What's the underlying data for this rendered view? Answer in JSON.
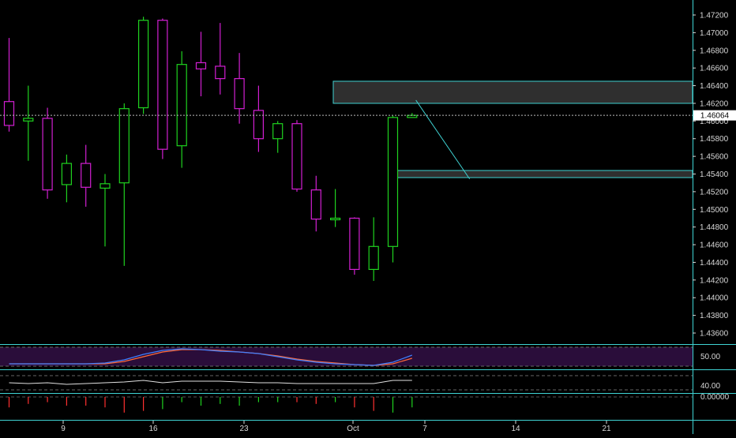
{
  "colors": {
    "background": "#000000",
    "up_candle": "#1fd21f",
    "down_candle": "#d21fd2",
    "zone_fill": "#2f2f2f",
    "zone_border": "#3fd3d3",
    "axis_text": "#d8d8d8",
    "last_price_box": "#ffffff",
    "stoch_k": "#3f7fff",
    "stoch_d": "#ff6a3a",
    "stoch_band": "#2a0d3a",
    "indicator_line": "#e0e0e0",
    "hist_up": "#1fd21f",
    "hist_down": "#ff3030"
  },
  "price_axis": {
    "ticks": [
      "1.47200",
      "1.47000",
      "1.46800",
      "1.46600",
      "1.46400",
      "1.46200",
      "1.46000",
      "1.45800",
      "1.45600",
      "1.45400",
      "1.45200",
      "1.45000",
      "1.44800",
      "1.44600",
      "1.44400",
      "1.44200",
      "1.44000",
      "1.43800",
      "1.43600"
    ],
    "last_price": "1.46064"
  },
  "time_axis": {
    "labels": [
      "9",
      "16",
      "23",
      "Oct",
      "7",
      "14",
      "21"
    ]
  },
  "stoch_panel": {
    "label": "50.00"
  },
  "oscillator_panel": {
    "label": "40.00"
  },
  "histogram_panel": {
    "label": "0.00000"
  },
  "chart_data": {
    "type": "candlestick",
    "ylim": [
      1.4346,
      1.4735
    ],
    "candles": [
      {
        "o": 1.4622,
        "h": 1.4694,
        "l": 1.4588,
        "c": 1.4595
      },
      {
        "o": 1.46,
        "h": 1.464,
        "l": 1.4555,
        "c": 1.4603
      },
      {
        "o": 1.4603,
        "h": 1.4615,
        "l": 1.4512,
        "c": 1.4522
      },
      {
        "o": 1.4528,
        "h": 1.4562,
        "l": 1.4508,
        "c": 1.4552
      },
      {
        "o": 1.4552,
        "h": 1.4573,
        "l": 1.4503,
        "c": 1.4525
      },
      {
        "o": 1.4524,
        "h": 1.454,
        "l": 1.4458,
        "c": 1.4529
      },
      {
        "o": 1.453,
        "h": 1.462,
        "l": 1.4436,
        "c": 1.4614
      },
      {
        "o": 1.4615,
        "h": 1.4718,
        "l": 1.4608,
        "c": 1.4714
      },
      {
        "o": 1.4714,
        "h": 1.4716,
        "l": 1.4557,
        "c": 1.4568
      },
      {
        "o": 1.4572,
        "h": 1.4679,
        "l": 1.4547,
        "c": 1.4664
      },
      {
        "o": 1.4666,
        "h": 1.4701,
        "l": 1.4628,
        "c": 1.4659
      },
      {
        "o": 1.4662,
        "h": 1.4711,
        "l": 1.463,
        "c": 1.4648
      },
      {
        "o": 1.4648,
        "h": 1.4677,
        "l": 1.4597,
        "c": 1.4614
      },
      {
        "o": 1.4612,
        "h": 1.464,
        "l": 1.4565,
        "c": 1.458
      },
      {
        "o": 1.458,
        "h": 1.46,
        "l": 1.4564,
        "c": 1.4597
      },
      {
        "o": 1.4597,
        "h": 1.4601,
        "l": 1.452,
        "c": 1.4523
      },
      {
        "o": 1.4522,
        "h": 1.4538,
        "l": 1.4475,
        "c": 1.4489
      },
      {
        "o": 1.4489,
        "h": 1.4523,
        "l": 1.448,
        "c": 1.449
      },
      {
        "o": 1.449,
        "h": 1.4491,
        "l": 1.4426,
        "c": 1.4432
      },
      {
        "o": 1.4432,
        "h": 1.4491,
        "l": 1.4419,
        "c": 1.4458
      },
      {
        "o": 1.4458,
        "h": 1.4606,
        "l": 1.444,
        "c": 1.4604
      },
      {
        "o": 1.4604,
        "h": 1.4609,
        "l": 1.4604,
        "c": 1.46064
      }
    ],
    "zones": [
      {
        "top": 1.4645,
        "bottom": 1.462
      },
      {
        "top": 1.4544,
        "bottom": 1.4536
      }
    ],
    "trendline": [
      {
        "bar": 21.2,
        "price": 1.462
      },
      {
        "bar": 24.0,
        "price": 1.4538
      }
    ],
    "stoch_k": [
      4,
      4,
      4,
      4,
      4,
      5,
      9,
      16,
      21,
      23,
      22,
      20,
      19,
      17,
      13,
      9,
      6,
      4,
      3,
      2,
      6,
      15
    ],
    "stoch_d": [
      4,
      4,
      4,
      4,
      4,
      4,
      7,
      13,
      19,
      22,
      22,
      21,
      19,
      17,
      14,
      10,
      7,
      5,
      3,
      2,
      4,
      11
    ],
    "oscillator": [
      48,
      47,
      48,
      46,
      47,
      48,
      49,
      51,
      48,
      50,
      50,
      50,
      49,
      48,
      48,
      47,
      47,
      47,
      47,
      47,
      51,
      51
    ],
    "histogram": [
      -0.6,
      -0.4,
      -0.3,
      -0.5,
      -0.5,
      -0.6,
      -0.9,
      -0.8,
      0.7,
      0.3,
      0.5,
      0.4,
      0.5,
      0.3,
      0.3,
      -0.3,
      -0.4,
      0.3,
      -0.6,
      -0.8,
      0.9,
      0.6
    ]
  }
}
